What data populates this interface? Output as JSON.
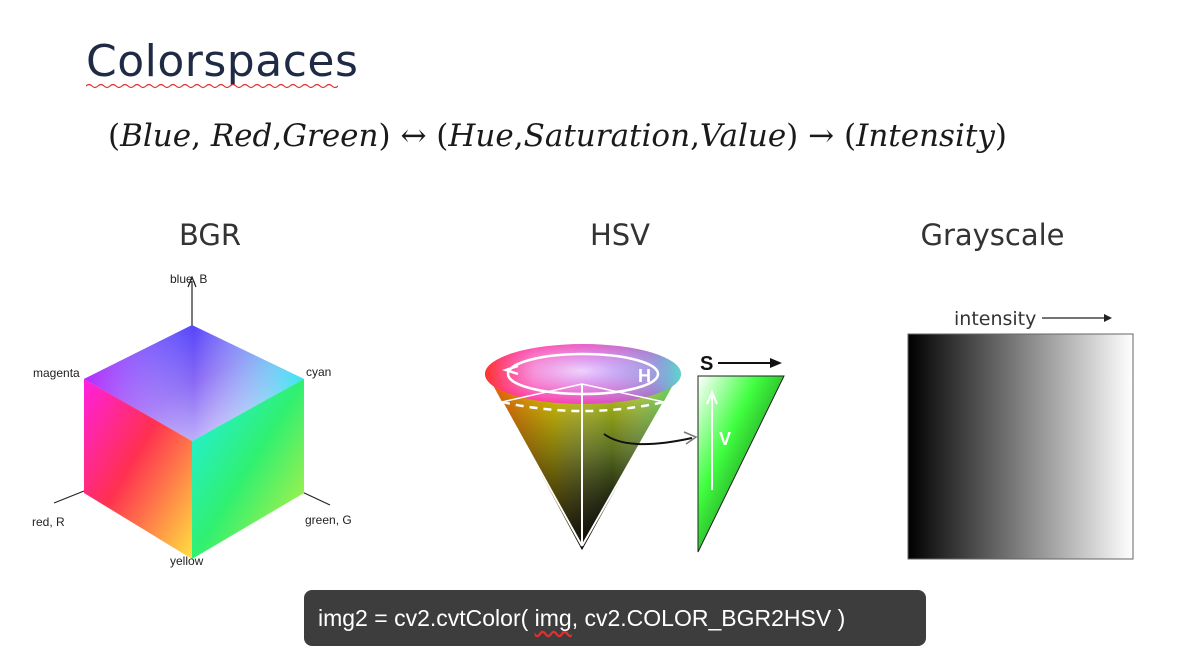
{
  "slide": {
    "title": "Colorspaces",
    "formula": {
      "open1": "(",
      "blue": "Blue",
      "c1": ",",
      "red": "Red",
      "c2": ",",
      "green": "Green",
      "close1": ")",
      "arrow1": " ↔ ",
      "open2": "(",
      "hue": "Hue",
      "c3": ",",
      "saturation": "Saturation",
      "c4": ",",
      "value": "Value",
      "close2": ")",
      "arrow2": " → ",
      "open3": "(",
      "intensity": "Intensity",
      "close3": ")"
    },
    "headings": {
      "bgr": "BGR",
      "hsv": "HSV",
      "gray": "Grayscale"
    }
  },
  "bgr_cube": {
    "labels": {
      "blue": "blue, B",
      "magenta": "magenta",
      "cyan": "cyan",
      "red": "red, R",
      "green": "green, G",
      "yellow": "yellow"
    },
    "colors": {
      "top": "#1e1ee6",
      "left": "#e0188a",
      "right": "#20e0a0"
    }
  },
  "hsv_cone": {
    "labels": {
      "h": "H",
      "s": "S",
      "v": "V"
    }
  },
  "grayscale": {
    "label": "intensity"
  },
  "code": {
    "prefix": "img2 = cv2.cvtColor( ",
    "flagged": "img",
    "suffix": ", cv2.COLOR_BGR2HSV )"
  }
}
